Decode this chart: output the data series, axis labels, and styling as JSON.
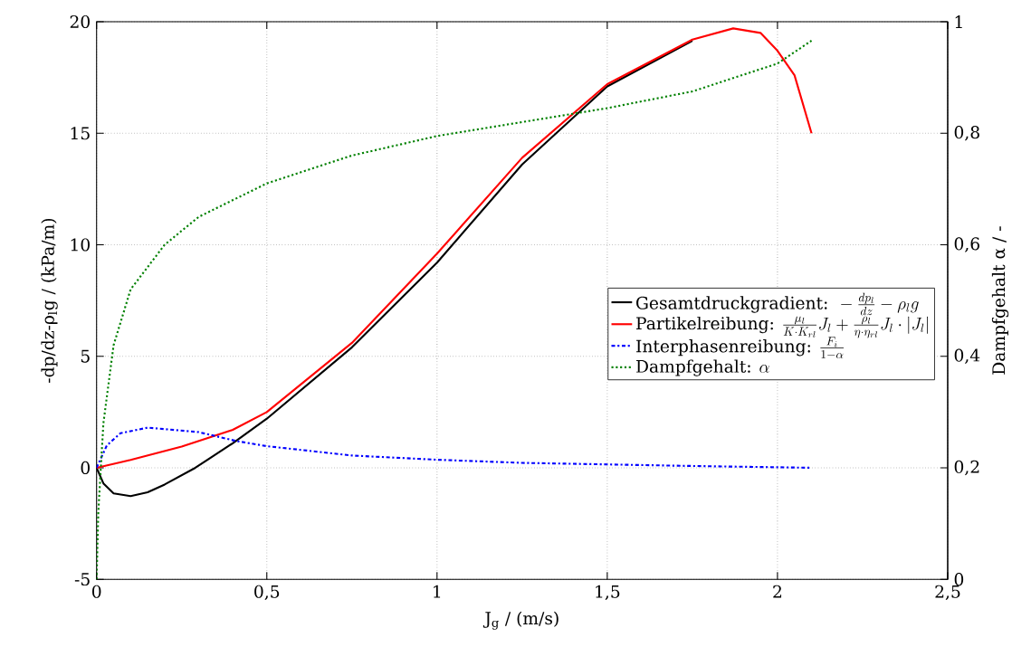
{
  "chart_data": {
    "type": "line",
    "xlabel": "J$_{g}$ / (m/s)",
    "ylabel": "-dp/dz-ρ$_{l}$g / (kPa/m)",
    "y2label": "Dampfgehalt α / -",
    "xlim": [
      0,
      2.5
    ],
    "ylim": [
      -5,
      20
    ],
    "y2lim": [
      0,
      1
    ],
    "xticks": [
      0,
      {
        "value": 0.5,
        "label": "0,5"
      },
      1,
      {
        "value": 1.5,
        "label": "1,5"
      },
      2,
      {
        "value": 2.5,
        "label": "2,5"
      }
    ],
    "yticks": [
      -5,
      0,
      5,
      10,
      15,
      20
    ],
    "y2ticks": [
      0,
      {
        "value": 0.2,
        "label": "0,2"
      },
      {
        "value": 0.4,
        "label": "0,4"
      },
      {
        "value": 0.6,
        "label": "0,6"
      },
      {
        "value": 0.8,
        "label": "0,8"
      },
      1
    ],
    "grid": true,
    "legend": "right",
    "series": [
      {
        "name": "\\text{Gesamtdruckgradient: }-\\frac{dp_l}{dz}-\\rho_l g",
        "color": "#000000",
        "line_style": "solid",
        "x": [
          0,
          0.02,
          0.05,
          0.1,
          0.15,
          0.2,
          0.29,
          0.4,
          0.5,
          0.75,
          1,
          1.25,
          1.5,
          1.75
        ],
        "values": [
          0,
          -0.7,
          -1.15,
          -1.27,
          -1.1,
          -0.75,
          0,
          1.1,
          2.2,
          5.4,
          9.2,
          13.6,
          17.1,
          19.15
        ]
      },
      {
        "name": "\\text{Partikelreibung: }\\frac{\\mu_l}{K\\cdot K_{rl}}J_l+\\frac{\\rho_l}{\\eta\\cdot\\eta_{rl}}J_l\\cdot|J_l|",
        "color": "#ff0000",
        "line_style": "solid",
        "x": [
          0,
          0.1,
          0.25,
          0.4,
          0.5,
          0.75,
          1,
          1.25,
          1.5,
          1.75,
          1.87,
          1.95,
          2,
          2.05,
          2.1
        ],
        "values": [
          0,
          0.35,
          0.95,
          1.7,
          2.5,
          5.6,
          9.6,
          13.9,
          17.2,
          19.2,
          19.7,
          19.5,
          18.7,
          17.6,
          15.0
        ]
      },
      {
        "name": "\\text{Interphasenreibung: }\\frac{F_i}{1-\\alpha}",
        "color": "#0000ff",
        "line_style": "dashdot",
        "x": [
          0,
          0.03,
          0.07,
          0.15,
          0.3,
          0.41,
          0.5,
          0.75,
          1,
          1.25,
          1.5,
          1.75,
          2.1
        ],
        "values": [
          0,
          1.0,
          1.55,
          1.8,
          1.6,
          1.2,
          0.97,
          0.55,
          0.36,
          0.22,
          0.15,
          0.08,
          0
        ]
      },
      {
        "name": "\\text{Dampfgehalt: }\\alpha",
        "color": "#008000",
        "line_style": "dotted",
        "axis": "y2",
        "x": [
          0,
          0.005,
          0.02,
          0.05,
          0.1,
          0.2,
          0.3,
          0.5,
          0.75,
          1,
          1.25,
          1.5,
          1.75,
          2,
          2.1
        ],
        "values": [
          0,
          0.12,
          0.28,
          0.42,
          0.52,
          0.6,
          0.65,
          0.71,
          0.76,
          0.795,
          0.82,
          0.845,
          0.875,
          0.925,
          0.966
        ]
      }
    ]
  }
}
